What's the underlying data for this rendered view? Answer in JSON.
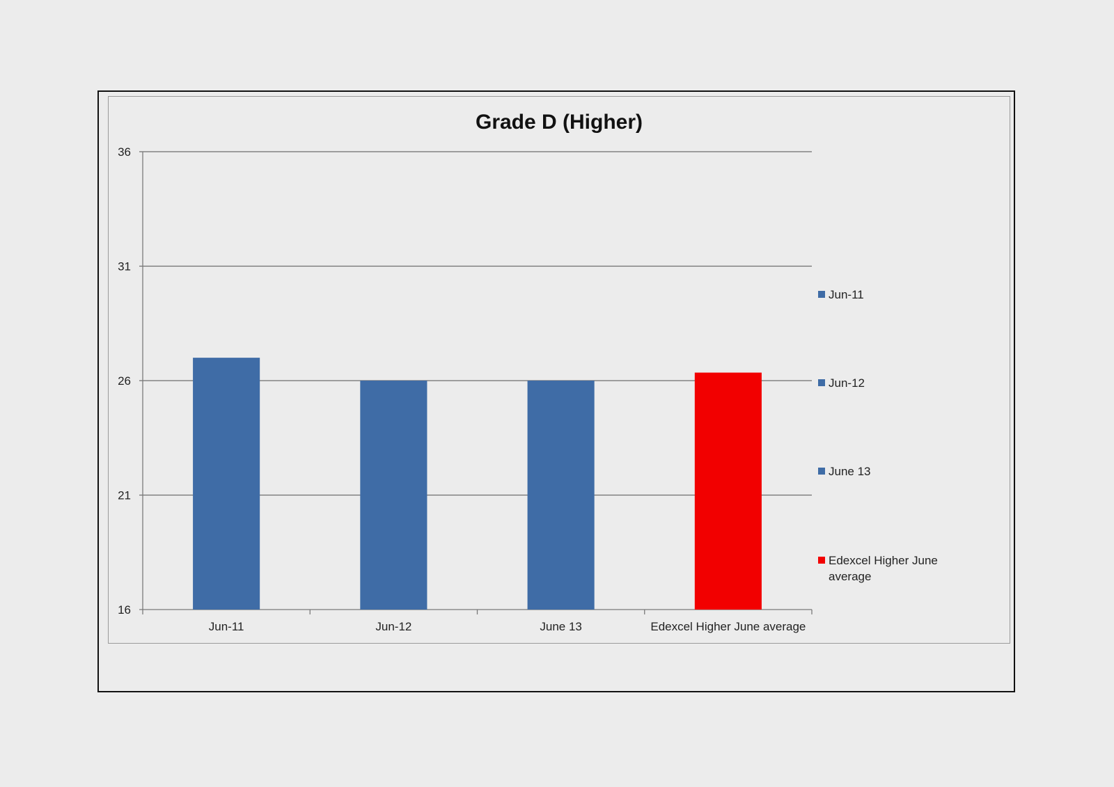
{
  "chart_data": {
    "type": "bar",
    "title": "Grade D (Higher)",
    "xlabel": "",
    "ylabel": "",
    "categories": [
      "Jun-11",
      "Jun-12",
      "June 13",
      "Edexcel Higher June average"
    ],
    "values": [
      27,
      26,
      26,
      26.35
    ],
    "bar_colors": [
      "#3f6ca6",
      "#3f6ca6",
      "#3f6ca6",
      "#f20000"
    ],
    "ylim": [
      16,
      36
    ],
    "yticks": [
      16,
      21,
      26,
      31,
      36
    ],
    "grid": true,
    "legend": {
      "placement": "right",
      "entries": [
        {
          "label": "Jun-11",
          "color": "#3f6ca6"
        },
        {
          "label": "Jun-12",
          "color": "#3f6ca6"
        },
        {
          "label": "June 13",
          "color": "#3f6ca6"
        },
        {
          "label": "Edexcel Higher June average",
          "color": "#f20000"
        }
      ]
    }
  }
}
